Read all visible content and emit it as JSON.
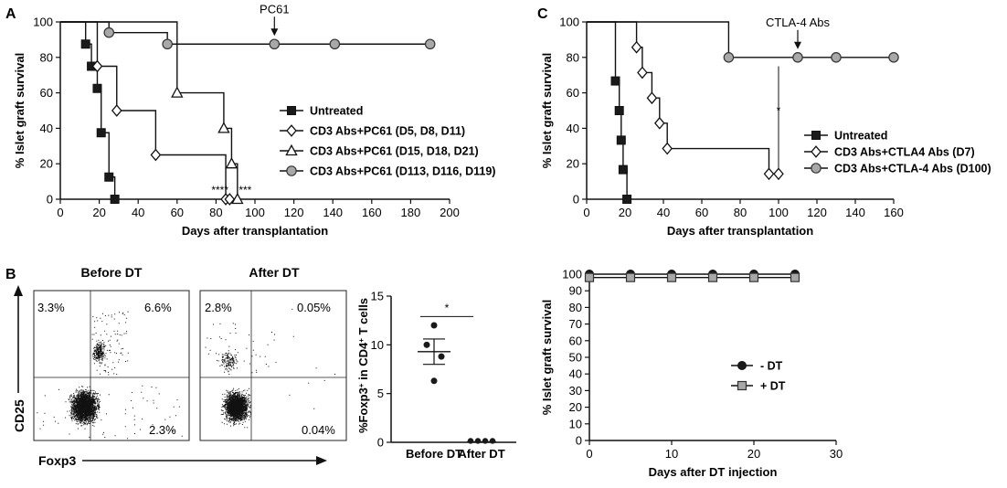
{
  "panels": [
    {
      "id": "A",
      "type": "step-survival",
      "label": "A",
      "xlabel": "Days after transplantation",
      "ylabel": "% Islet graft survival",
      "xlim": [
        0,
        200
      ],
      "ylim": [
        0,
        100
      ],
      "xticks": [
        0,
        20,
        40,
        60,
        80,
        100,
        120,
        140,
        160,
        180,
        200
      ],
      "yticks": [
        0,
        20,
        40,
        60,
        80,
        100
      ],
      "series": [
        {
          "name": "Untreated",
          "marker": "filled-square",
          "color": "#1a1a1a",
          "times": [
            0,
            13,
            16,
            19,
            21,
            25,
            28
          ],
          "values": [
            100,
            87.5,
            75,
            62.5,
            37.5,
            12.5,
            0
          ]
        },
        {
          "name": "CD3 Abs+PC61 (D5, D8, D11)",
          "marker": "open-diamond",
          "color": "#ffffff",
          "times": [
            0,
            19,
            29,
            49,
            85,
            87
          ],
          "values": [
            100,
            75,
            50,
            25,
            0,
            0
          ]
        },
        {
          "name": "CD3 Abs+PC61 (D15, D18, D21)",
          "marker": "open-triangle",
          "color": "#ffffff",
          "times": [
            0,
            60,
            84,
            88,
            91
          ],
          "values": [
            100,
            60,
            40,
            20,
            0
          ]
        },
        {
          "name": "CD3 Abs+PC61 (D113, D116, D119)",
          "marker": "gray-circle",
          "color": "#a8a8a8",
          "times": [
            0,
            25,
            55,
            110,
            141,
            190
          ],
          "values": [
            100,
            94,
            87.5,
            87.5,
            87.5,
            87.5
          ]
        }
      ],
      "arrow_annotation": {
        "text": "PC61",
        "x": 110,
        "y": 87.5
      },
      "significance": [
        {
          "text": "****",
          "x": 82,
          "y": 3
        },
        {
          "text": "***",
          "x": 95,
          "y": 3
        }
      ]
    },
    {
      "id": "C",
      "type": "step-survival",
      "label": "C",
      "xlabel": "Days after transplantation",
      "ylabel": "% Islet graft survival",
      "xlim": [
        0,
        160
      ],
      "ylim": [
        0,
        100
      ],
      "xticks": [
        0,
        20,
        40,
        60,
        80,
        100,
        120,
        140,
        160
      ],
      "yticks": [
        0,
        20,
        40,
        60,
        80,
        100
      ],
      "series": [
        {
          "name": "Untreated",
          "marker": "filled-square",
          "color": "#1a1a1a",
          "times": [
            0,
            15,
            17,
            18,
            19,
            21
          ],
          "values": [
            100,
            66.7,
            50,
            33.3,
            16.7,
            0
          ]
        },
        {
          "name": "CD3 Abs+CTLA4 Abs (D7)",
          "marker": "open-diamond",
          "color": "#ffffff",
          "times": [
            0,
            26,
            29,
            34,
            38,
            42,
            95,
            100
          ],
          "values": [
            100,
            85.7,
            71.4,
            57.1,
            42.9,
            28.6,
            14.3,
            14.3
          ]
        },
        {
          "name": "CD3 Abs+CTLA-4 Abs (D100)",
          "marker": "gray-circle",
          "color": "#a8a8a8",
          "times": [
            0,
            74,
            110,
            130,
            160
          ],
          "values": [
            100,
            80,
            80,
            80,
            80
          ]
        }
      ],
      "arrow_annotation": {
        "text": "CTLA-4 Abs",
        "x": 110,
        "y": 80
      },
      "significance": [
        {
          "text": "*",
          "x": 100,
          "y": 48
        }
      ]
    },
    {
      "id": "D",
      "type": "line",
      "xlabel": "Days after DT injection",
      "ylabel": "% Islet graft survival",
      "xlim": [
        0,
        30
      ],
      "ylim": [
        0,
        100
      ],
      "xticks": [
        0,
        10,
        20,
        30
      ],
      "yticks": [
        0,
        10,
        20,
        30,
        40,
        50,
        60,
        70,
        80,
        90,
        100
      ],
      "series": [
        {
          "name": "- DT",
          "marker": "filled-circle",
          "color": "#1a1a1a",
          "x": [
            0,
            5,
            10,
            15,
            20,
            25
          ],
          "values": [
            100,
            100,
            100,
            100,
            100,
            100
          ]
        },
        {
          "name": "+ DT",
          "marker": "gray-square",
          "color": "#a8a8a8",
          "x": [
            0,
            5,
            10,
            15,
            20,
            25
          ],
          "values": [
            98,
            98,
            98,
            98,
            98,
            98
          ]
        }
      ]
    }
  ],
  "flow": {
    "label": "B",
    "plots": [
      {
        "title": "Before DT",
        "q_ul": "3.3%",
        "q_ur": "6.6%",
        "q_lr": "2.3%"
      },
      {
        "title": "After DT",
        "q_ul": "2.8%",
        "q_ur": "0.05%",
        "q_lr": "0.04%"
      }
    ],
    "y_axis_label": "CD25",
    "x_axis_label": "Foxp3"
  },
  "dotplot": {
    "ylabel": "%Foxp3+ in CD4+ T cells",
    "ylabel_parts": [
      "%Foxp3",
      "+",
      " in CD4",
      "+",
      " T cells"
    ],
    "categories": [
      "Before DT",
      "After DT"
    ],
    "ylim": [
      0,
      15
    ],
    "yticks": [
      0,
      5,
      10,
      15
    ],
    "groups": [
      {
        "name": "Before DT",
        "values": [
          12,
          10,
          8.8,
          6.3
        ],
        "mean": 9.3,
        "sem_low": 8.0,
        "sem_high": 10.6
      },
      {
        "name": "After DT",
        "values": [
          0.05,
          0.05,
          0.05,
          0.05
        ],
        "mean": 0.05,
        "sem_low": 0.05,
        "sem_high": 0.05
      }
    ],
    "significance": "*"
  }
}
